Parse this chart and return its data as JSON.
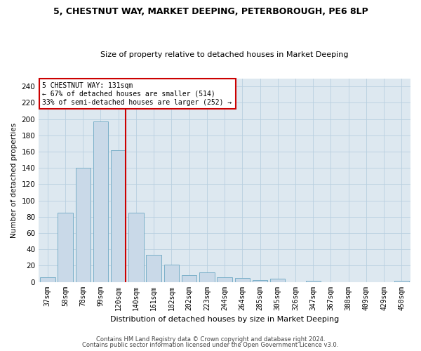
{
  "title_line1": "5, CHESTNUT WAY, MARKET DEEPING, PETERBOROUGH, PE6 8LP",
  "title_line2": "Size of property relative to detached houses in Market Deeping",
  "xlabel": "Distribution of detached houses by size in Market Deeping",
  "ylabel": "Number of detached properties",
  "categories": [
    "37sqm",
    "58sqm",
    "78sqm",
    "99sqm",
    "120sqm",
    "140sqm",
    "161sqm",
    "182sqm",
    "202sqm",
    "223sqm",
    "244sqm",
    "264sqm",
    "285sqm",
    "305sqm",
    "326sqm",
    "347sqm",
    "367sqm",
    "388sqm",
    "409sqm",
    "429sqm",
    "450sqm"
  ],
  "values": [
    6,
    85,
    140,
    197,
    162,
    85,
    33,
    21,
    8,
    12,
    6,
    5,
    2,
    4,
    0,
    1,
    0,
    0,
    0,
    0,
    1
  ],
  "bar_color": "#c9d9e8",
  "bar_edge_color": "#7aafc8",
  "vline_x_index": 4,
  "vline_color": "#cc0000",
  "annotation_line1": "5 CHESTNUT WAY: 131sqm",
  "annotation_line2": "← 67% of detached houses are smaller (514)",
  "annotation_line3": "33% of semi-detached houses are larger (252) →",
  "box_edge_color": "#cc0000",
  "ylim": [
    0,
    250
  ],
  "yticks": [
    0,
    20,
    40,
    60,
    80,
    100,
    120,
    140,
    160,
    180,
    200,
    220,
    240
  ],
  "footer1": "Contains HM Land Registry data © Crown copyright and database right 2024.",
  "footer2": "Contains public sector information licensed under the Open Government Licence v3.0.",
  "grid_color": "#b8cfe0",
  "bg_color": "#dde8f0"
}
